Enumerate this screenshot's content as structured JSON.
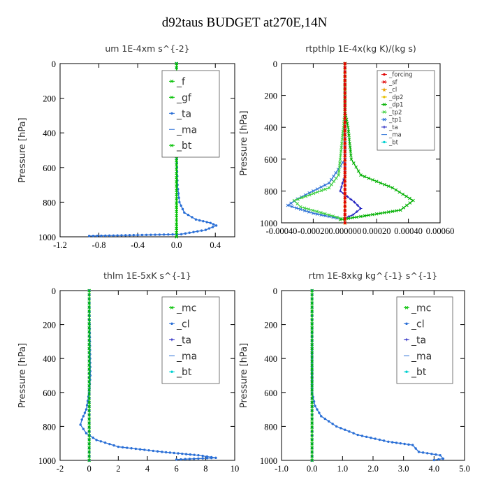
{
  "figure_title": "d92taus  BUDGET at270E,14N",
  "chart_data": [
    {
      "id": "um",
      "type": "line",
      "title": "um   1E-4xm  s^{-2}",
      "ylabel": "Pressure  [hPa]",
      "xlim": [
        -1.2,
        0.6
      ],
      "ylim": [
        1000,
        0
      ],
      "xticks": [
        "-1.2",
        "-0.8",
        "-0.4",
        "0.0",
        "0.4"
      ],
      "xtick_values": [
        -1.2,
        -0.8,
        -0.4,
        0.0,
        0.4
      ],
      "yticks": [
        "0",
        "200",
        "400",
        "600",
        "800",
        "1000"
      ],
      "ytick_values": [
        0,
        200,
        400,
        600,
        800,
        1000
      ],
      "legend_style": "large",
      "series": [
        {
          "name": "_f",
          "color": "#00c000",
          "marker": "x",
          "points": [
            [
              0,
              0
            ],
            [
              0,
              1000
            ]
          ]
        },
        {
          "name": "_gf",
          "color": "#00c000",
          "marker": "x",
          "points": [
            [
              0,
              0
            ],
            [
              0,
              1000
            ]
          ]
        },
        {
          "name": "_ta",
          "color": "#2a6fd6",
          "marker": "dot",
          "points": [
            [
              0,
              0
            ],
            [
              0,
              500
            ],
            [
              0.01,
              700
            ],
            [
              0.03,
              800
            ],
            [
              0.08,
              860
            ],
            [
              0.2,
              900
            ],
            [
              0.35,
              920
            ],
            [
              0.41,
              935
            ],
            [
              0.3,
              960
            ],
            [
              0.05,
              985
            ],
            [
              -0.4,
              990
            ],
            [
              -0.9,
              995
            ]
          ]
        },
        {
          "name": "_ma",
          "color": "#2a6fd6",
          "marker": "none",
          "points": [
            [
              0,
              0
            ],
            [
              0,
              1000
            ]
          ]
        },
        {
          "name": "_bt",
          "color": "#00c000",
          "marker": "x",
          "points": [
            [
              0,
              0
            ],
            [
              0,
              1000
            ]
          ]
        }
      ]
    },
    {
      "id": "rtpthlp",
      "type": "line",
      "title": "rtpthlp   1E-4x(kg K)/(kg s)",
      "ylabel": "Pressure  [hPa]",
      "xlim": [
        -0.0004,
        0.0006
      ],
      "ylim": [
        1000,
        0
      ],
      "xticks": [
        "-0.00040",
        "-0.00020",
        "0.000000",
        "0.00020",
        "0.00040",
        "0.00060"
      ],
      "xtick_values": [
        -0.0004,
        -0.0002,
        0.0,
        0.0002,
        0.0004,
        0.0006
      ],
      "yticks": [
        "0",
        "200",
        "400",
        "600",
        "800",
        "1000"
      ],
      "ytick_values": [
        0,
        200,
        400,
        600,
        800,
        1000
      ],
      "legend_style": "small",
      "series": [
        {
          "name": "_forcing",
          "color": "#e00000",
          "marker": "dot",
          "points": [
            [
              0,
              0
            ],
            [
              0,
              1000
            ]
          ]
        },
        {
          "name": "_sf",
          "color": "#e00000",
          "marker": "x",
          "points": [
            [
              0,
              0
            ],
            [
              0,
              1000
            ]
          ]
        },
        {
          "name": "_cl",
          "color": "#e8a000",
          "marker": "star",
          "points": [
            [
              0,
              0
            ],
            [
              0,
              1000
            ]
          ]
        },
        {
          "name": "_dp2",
          "color": "#e8c000",
          "marker": "dot",
          "points": [
            [
              0,
              0
            ],
            [
              0,
              1000
            ]
          ]
        },
        {
          "name": "_dp1",
          "color": "#00b000",
          "marker": "x",
          "points": [
            [
              0,
              0
            ],
            [
              0,
              300
            ],
            [
              2e-05,
              400
            ],
            [
              3e-05,
              500
            ],
            [
              4e-05,
              600
            ],
            [
              0.0001,
              700
            ],
            [
              0.0003,
              780
            ],
            [
              0.00043,
              860
            ],
            [
              0.00035,
              920
            ],
            [
              0.0001,
              960
            ],
            [
              -3e-05,
              980
            ]
          ]
        },
        {
          "name": "_tp2",
          "color": "#40d040",
          "marker": "x",
          "points": [
            [
              0,
              0
            ],
            [
              0,
              300
            ],
            [
              -1e-05,
              400
            ],
            [
              -2e-05,
              500
            ],
            [
              -4e-05,
              700
            ],
            [
              -0.0001,
              780
            ],
            [
              -0.00032,
              860
            ],
            [
              -0.00028,
              900
            ],
            [
              -0.0001,
              950
            ],
            [
              0,
              980
            ]
          ]
        },
        {
          "name": "_tp1",
          "color": "#2a6fd6",
          "marker": "x",
          "points": [
            [
              0,
              0
            ],
            [
              0,
              600
            ],
            [
              -0.0001,
              750
            ],
            [
              -0.0003,
              850
            ],
            [
              -0.00036,
              890
            ],
            [
              -0.0002,
              940
            ],
            [
              -5e-05,
              970
            ]
          ]
        },
        {
          "name": "_ta",
          "color": "#2020c0",
          "marker": "plus",
          "points": [
            [
              0,
              0
            ],
            [
              0,
              700
            ],
            [
              -3e-05,
              800
            ],
            [
              6e-05,
              870
            ],
            [
              0.0001,
              910
            ],
            [
              5e-05,
              950
            ],
            [
              0,
              970
            ]
          ]
        },
        {
          "name": "_ma",
          "color": "#2a6fd6",
          "marker": "none",
          "points": [
            [
              0,
              0
            ],
            [
              0,
              1000
            ]
          ]
        },
        {
          "name": "_bt",
          "color": "#00d0d0",
          "marker": "dot",
          "points": [
            [
              0,
              0
            ],
            [
              0,
              1000
            ]
          ]
        }
      ]
    },
    {
      "id": "thlm",
      "type": "line",
      "title": "thlm   1E-5xK  s^{-1}",
      "ylabel": "Pressure  [hPa]",
      "xlim": [
        -2,
        10
      ],
      "ylim": [
        1000,
        0
      ],
      "xticks": [
        "-2",
        "0",
        "2",
        "4",
        "6",
        "8",
        "10"
      ],
      "xtick_values": [
        -2,
        0,
        2,
        4,
        6,
        8,
        10
      ],
      "yticks": [
        "0",
        "200",
        "400",
        "600",
        "800",
        "1000"
      ],
      "ytick_values": [
        0,
        200,
        400,
        600,
        800,
        1000
      ],
      "legend_style": "large",
      "series": [
        {
          "name": "_mc",
          "color": "#00c000",
          "marker": "x",
          "points": [
            [
              0,
              0
            ],
            [
              0,
              1000
            ]
          ]
        },
        {
          "name": "_cl",
          "color": "#2a6fd6",
          "marker": "dot",
          "points": [
            [
              0,
              0
            ],
            [
              0.05,
              300
            ],
            [
              0.08,
              500
            ],
            [
              0,
              600
            ],
            [
              -0.2,
              700
            ],
            [
              -0.5,
              760
            ],
            [
              -0.6,
              790
            ],
            [
              -0.2,
              840
            ],
            [
              0.5,
              880
            ],
            [
              2,
              920
            ],
            [
              5,
              950
            ],
            [
              7.5,
              970
            ],
            [
              8.7,
              985
            ],
            [
              6,
              995
            ]
          ]
        },
        {
          "name": "_ta",
          "color": "#2020c0",
          "marker": "plus",
          "points": [
            [
              0,
              0
            ],
            [
              0,
              1000
            ]
          ]
        },
        {
          "name": "_ma",
          "color": "#2a6fd6",
          "marker": "none",
          "points": [
            [
              0,
              0
            ],
            [
              0,
              1000
            ]
          ]
        },
        {
          "name": "_bt",
          "color": "#00d0d0",
          "marker": "dot",
          "points": [
            [
              0,
              0
            ],
            [
              0,
              1000
            ]
          ]
        }
      ]
    },
    {
      "id": "rtm",
      "type": "line",
      "title": "rtm   1E-8xkg  kg^{-1}  s^{-1}",
      "ylabel": "Pressure  [hPa]",
      "xlim": [
        -1.0,
        5.0
      ],
      "ylim": [
        1000,
        0
      ],
      "xticks": [
        "-1.0",
        "0.0",
        "1.0",
        "2.0",
        "3.0",
        "4.0",
        "5.0"
      ],
      "xtick_values": [
        -1,
        0,
        1,
        2,
        3,
        4,
        5
      ],
      "yticks": [
        "0",
        "200",
        "400",
        "600",
        "800",
        "1000"
      ],
      "ytick_values": [
        0,
        200,
        400,
        600,
        800,
        1000
      ],
      "legend_style": "large",
      "series": [
        {
          "name": "_mc",
          "color": "#00c000",
          "marker": "x",
          "points": [
            [
              0,
              0
            ],
            [
              0,
              1000
            ]
          ]
        },
        {
          "name": "_cl",
          "color": "#2a6fd6",
          "marker": "dot",
          "points": [
            [
              0,
              0
            ],
            [
              0,
              400
            ],
            [
              0,
              600
            ],
            [
              0.1,
              680
            ],
            [
              0.3,
              740
            ],
            [
              0.8,
              800
            ],
            [
              1.5,
              850
            ],
            [
              2.5,
              890
            ],
            [
              3.3,
              910
            ],
            [
              3.5,
              950
            ],
            [
              4.2,
              970
            ],
            [
              4.3,
              990
            ],
            [
              4.0,
              998
            ]
          ]
        },
        {
          "name": "_ta",
          "color": "#2020c0",
          "marker": "plus",
          "points": [
            [
              0,
              0
            ],
            [
              0,
              1000
            ]
          ]
        },
        {
          "name": "_ma",
          "color": "#2a6fd6",
          "marker": "none",
          "points": [
            [
              0,
              0
            ],
            [
              0,
              1000
            ]
          ]
        },
        {
          "name": "_bt",
          "color": "#00d0d0",
          "marker": "dot",
          "points": [
            [
              0,
              0
            ],
            [
              0,
              1000
            ]
          ]
        }
      ]
    }
  ]
}
